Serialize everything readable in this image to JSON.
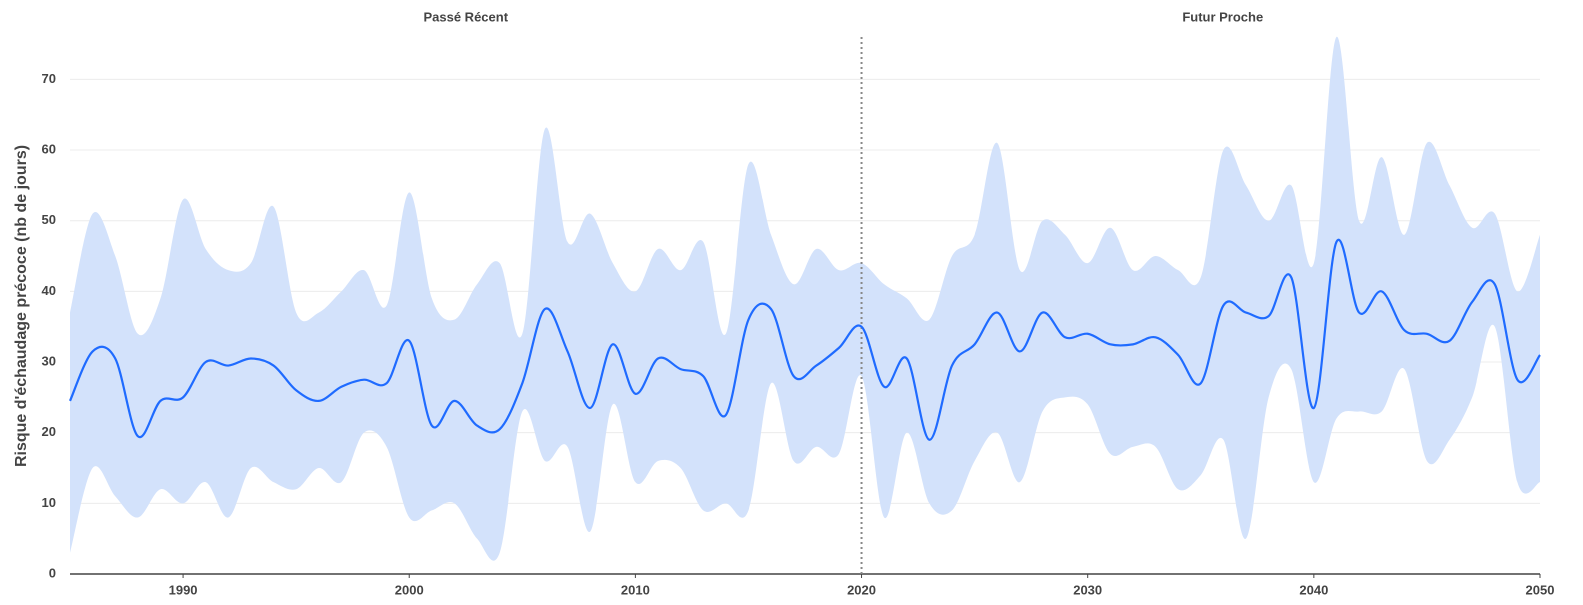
{
  "chart_data": {
    "type": "line",
    "y_label": "Risque d'échaudage précoce (nb de jours)",
    "annotations": [
      "Passé Récent",
      "Futur Proche"
    ],
    "divider_x": 2020,
    "x": [
      1985,
      1986,
      1987,
      1988,
      1989,
      1990,
      1991,
      1992,
      1993,
      1994,
      1995,
      1996,
      1997,
      1998,
      1999,
      2000,
      2001,
      2002,
      2003,
      2004,
      2005,
      2006,
      2007,
      2008,
      2009,
      2010,
      2011,
      2012,
      2013,
      2014,
      2015,
      2016,
      2017,
      2018,
      2019,
      2020,
      2021,
      2022,
      2023,
      2024,
      2025,
      2026,
      2027,
      2028,
      2029,
      2030,
      2031,
      2032,
      2033,
      2034,
      2035,
      2036,
      2037,
      2038,
      2039,
      2040,
      2041,
      2042,
      2043,
      2044,
      2045,
      2046,
      2047,
      2048,
      2049,
      2050
    ],
    "values": [
      24.5,
      31.5,
      30.5,
      19.5,
      24.5,
      25,
      30,
      29.5,
      30.5,
      29.5,
      26,
      24.5,
      26.5,
      27.5,
      27,
      33,
      21,
      24.5,
      21,
      20.5,
      27,
      37.5,
      31.5,
      23.5,
      32.5,
      25.5,
      30.5,
      29,
      28,
      22.5,
      36,
      37.5,
      28,
      29.5,
      32,
      35,
      26.5,
      30.5,
      19,
      29.5,
      32.5,
      37,
      31.5,
      37,
      33.5,
      34,
      32.5,
      32.5,
      33.5,
      31,
      27,
      38,
      37,
      36.5,
      42,
      23.5,
      47,
      37,
      40,
      34.5,
      34,
      33,
      38.5,
      41,
      27.5,
      31
    ],
    "upper": [
      37,
      51,
      45,
      34,
      39,
      53,
      46,
      43,
      44,
      52,
      37,
      37,
      40,
      43,
      38,
      54,
      39,
      36,
      41,
      44,
      34,
      63,
      47,
      51,
      44,
      40,
      46,
      43,
      47,
      34,
      58,
      48,
      41,
      46,
      43,
      44,
      41,
      39,
      36,
      45,
      48,
      61,
      43,
      50,
      48,
      44,
      49,
      43,
      45,
      43,
      42,
      60,
      55,
      50,
      55,
      44,
      76,
      50,
      59,
      48,
      61,
      55,
      49,
      51,
      40,
      48
    ],
    "lower": [
      3,
      15,
      11,
      8,
      12,
      10,
      13,
      8,
      15,
      13,
      12,
      15,
      13,
      20,
      18,
      8,
      9,
      10,
      5,
      3,
      23,
      16,
      18,
      6,
      24,
      13,
      16,
      15,
      9,
      10,
      9,
      27,
      16,
      18,
      17,
      28,
      8,
      20,
      10,
      9,
      16,
      20,
      13,
      23,
      25,
      24,
      17,
      18,
      18,
      12,
      14,
      19,
      5,
      25,
      29,
      13,
      22,
      23,
      23,
      29,
      16,
      19,
      25,
      35,
      13,
      13
    ],
    "color": "#1f6bff",
    "band_color": "#d3e2fb",
    "xlim": [
      1985,
      2050
    ],
    "xticks": [
      1990,
      2000,
      2010,
      2020,
      2030,
      2040,
      2050
    ],
    "ylim": [
      0,
      76
    ],
    "yticks": [
      0,
      10,
      20,
      30,
      40,
      50,
      60,
      70
    ],
    "grid": true
  }
}
